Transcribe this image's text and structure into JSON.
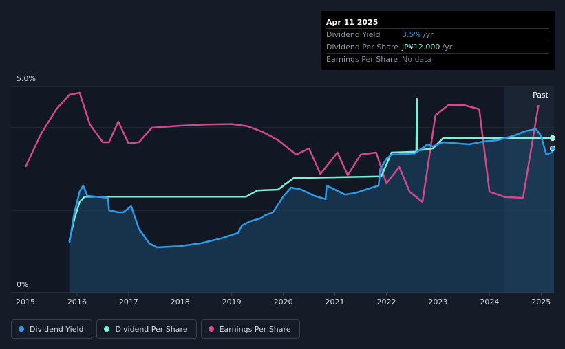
{
  "tooltip": {
    "date": "Apr 11 2025",
    "rows": [
      {
        "label": "Dividend Yield",
        "value": "3.5%",
        "unit": "/yr"
      },
      {
        "label": "Dividend Per Share",
        "value": "JP¥12.000",
        "unit": "/yr"
      },
      {
        "label": "Earnings Per Share",
        "value": "No data",
        "unit": ""
      }
    ]
  },
  "legend": [
    {
      "label": "Dividend Yield",
      "color": "#2f9be8"
    },
    {
      "label": "Dividend Per Share",
      "color": "#7ff0d8"
    },
    {
      "label": "Earnings Per Share",
      "color": "#d04a8c"
    }
  ],
  "chart_data": {
    "type": "line",
    "y_top_label": "5.0%",
    "y_bottom_label": "0%",
    "ylim": [
      0,
      5.0
    ],
    "xlim": [
      2014.72,
      2025.25
    ],
    "x_ticks": [
      "2015",
      "2016",
      "2017",
      "2018",
      "2019",
      "2020",
      "2021",
      "2022",
      "2023",
      "2024",
      "2025"
    ],
    "past_label": "Past",
    "past_region_start": 2024.28,
    "grid": true,
    "series": [
      {
        "name": "Dividend Yield",
        "color": "#2f9be8",
        "unit": "%",
        "points": [
          [
            2015.85,
            1.2
          ],
          [
            2015.95,
            1.95
          ],
          [
            2016.05,
            2.45
          ],
          [
            2016.12,
            2.6
          ],
          [
            2016.2,
            2.35
          ],
          [
            2016.6,
            2.3
          ],
          [
            2016.62,
            2.0
          ],
          [
            2016.8,
            1.95
          ],
          [
            2016.9,
            1.95
          ],
          [
            2017.05,
            2.1
          ],
          [
            2017.2,
            1.55
          ],
          [
            2017.4,
            1.2
          ],
          [
            2017.55,
            1.1
          ],
          [
            2018.0,
            1.13
          ],
          [
            2018.4,
            1.2
          ],
          [
            2018.8,
            1.32
          ],
          [
            2019.12,
            1.45
          ],
          [
            2019.2,
            1.63
          ],
          [
            2019.35,
            1.73
          ],
          [
            2019.55,
            1.8
          ],
          [
            2019.65,
            1.88
          ],
          [
            2019.8,
            1.95
          ],
          [
            2020.0,
            2.33
          ],
          [
            2020.15,
            2.55
          ],
          [
            2020.35,
            2.5
          ],
          [
            2020.6,
            2.35
          ],
          [
            2020.82,
            2.27
          ],
          [
            2020.84,
            2.6
          ],
          [
            2021.0,
            2.5
          ],
          [
            2021.2,
            2.38
          ],
          [
            2021.4,
            2.42
          ],
          [
            2021.6,
            2.5
          ],
          [
            2021.85,
            2.6
          ],
          [
            2021.88,
            3.0
          ],
          [
            2022.0,
            3.25
          ],
          [
            2022.1,
            3.35
          ],
          [
            2022.55,
            3.38
          ],
          [
            2022.8,
            3.6
          ],
          [
            2022.9,
            3.55
          ],
          [
            2023.1,
            3.65
          ],
          [
            2023.4,
            3.62
          ],
          [
            2023.6,
            3.6
          ],
          [
            2023.9,
            3.67
          ],
          [
            2024.15,
            3.7
          ],
          [
            2024.45,
            3.8
          ],
          [
            2024.7,
            3.92
          ],
          [
            2024.9,
            3.97
          ],
          [
            2025.0,
            3.8
          ],
          [
            2025.1,
            3.35
          ],
          [
            2025.2,
            3.4
          ],
          [
            2025.25,
            3.5
          ]
        ]
      },
      {
        "name": "Dividend Per Share",
        "color": "#7ff0d8",
        "unit": "JP¥",
        "points": [
          [
            2015.85,
            1.25
          ],
          [
            2015.95,
            1.8
          ],
          [
            2016.05,
            2.2
          ],
          [
            2016.15,
            2.33
          ],
          [
            2019.28,
            2.33
          ],
          [
            2019.5,
            2.48
          ],
          [
            2019.9,
            2.5
          ],
          [
            2020.2,
            2.78
          ],
          [
            2021.9,
            2.82
          ],
          [
            2022.1,
            3.4
          ],
          [
            2022.58,
            3.42
          ],
          [
            2022.59,
            4.7
          ],
          [
            2022.6,
            3.45
          ],
          [
            2022.9,
            3.5
          ],
          [
            2023.1,
            3.75
          ],
          [
            2025.25,
            3.75
          ]
        ]
      },
      {
        "name": "Earnings Per Share",
        "color": "#d04a8c",
        "unit": "JP¥",
        "points": [
          [
            2015.0,
            3.05
          ],
          [
            2015.3,
            3.85
          ],
          [
            2015.6,
            4.45
          ],
          [
            2015.85,
            4.8
          ],
          [
            2016.05,
            4.85
          ],
          [
            2016.25,
            4.08
          ],
          [
            2016.5,
            3.65
          ],
          [
            2016.62,
            3.65
          ],
          [
            2016.8,
            4.15
          ],
          [
            2017.0,
            3.62
          ],
          [
            2017.2,
            3.65
          ],
          [
            2017.45,
            4.0
          ],
          [
            2018.0,
            4.05
          ],
          [
            2018.5,
            4.08
          ],
          [
            2019.0,
            4.09
          ],
          [
            2019.3,
            4.04
          ],
          [
            2019.6,
            3.9
          ],
          [
            2019.9,
            3.7
          ],
          [
            2020.05,
            3.55
          ],
          [
            2020.25,
            3.35
          ],
          [
            2020.5,
            3.5
          ],
          [
            2020.72,
            2.88
          ],
          [
            2021.05,
            3.4
          ],
          [
            2021.25,
            2.85
          ],
          [
            2021.5,
            3.35
          ],
          [
            2021.8,
            3.4
          ],
          [
            2022.0,
            2.65
          ],
          [
            2022.25,
            3.05
          ],
          [
            2022.45,
            2.45
          ],
          [
            2022.7,
            2.2
          ],
          [
            2022.95,
            4.3
          ],
          [
            2023.2,
            4.55
          ],
          [
            2023.5,
            4.55
          ],
          [
            2023.8,
            4.45
          ],
          [
            2024.0,
            2.45
          ],
          [
            2024.3,
            2.32
          ],
          [
            2024.65,
            2.3
          ],
          [
            2024.95,
            4.55
          ]
        ]
      }
    ]
  }
}
